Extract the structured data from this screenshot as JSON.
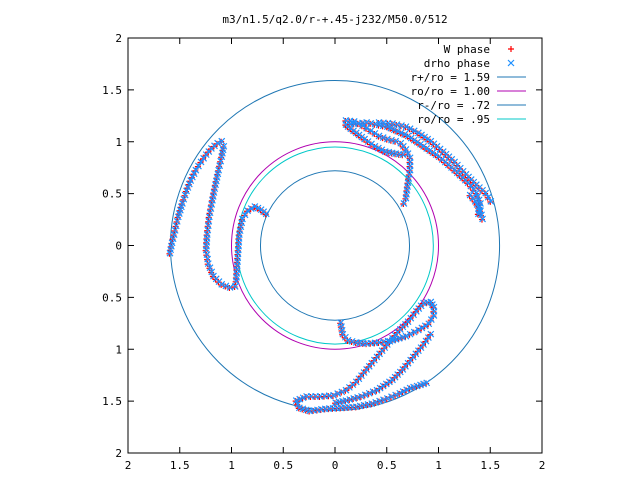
{
  "chart_data": {
    "type": "scatter",
    "title": "m3/n1.5/q2.0/r-+.45-j232/M50.0/512",
    "xlabel": "",
    "ylabel": "",
    "xlim": [
      -2,
      2
    ],
    "ylim": [
      -2,
      2
    ],
    "grid": false,
    "legend_position": "top-right",
    "x_ticks": [
      -2,
      -1.5,
      -1,
      -0.5,
      0,
      0.5,
      1,
      1.5,
      2
    ],
    "y_ticks": [
      -2,
      -1.5,
      -1,
      -0.5,
      0,
      0.5,
      1,
      1.5,
      2
    ],
    "x_tick_labels": [
      "2",
      "1.5",
      "1",
      "0.5",
      "0",
      "0.5",
      "1",
      "1.5",
      "2"
    ],
    "y_tick_labels": [
      "2",
      "1.5",
      "1",
      "0.5",
      "0",
      "0.5",
      "1",
      "1.5",
      "2"
    ],
    "series": [
      {
        "name": "W phase",
        "kind": "points",
        "marker": "plus",
        "color": "#ff0000"
      },
      {
        "name": "drho phase",
        "kind": "points",
        "marker": "cross",
        "color": "#1e90ff"
      },
      {
        "name": "r+/ro = 1.59",
        "kind": "circle",
        "radius": 1.59,
        "color": "#1f77b4"
      },
      {
        "name": "ro/ro = 1.00",
        "kind": "circle",
        "radius": 1.0,
        "color": "#b000b0"
      },
      {
        "name": "r-/ro = .72",
        "kind": "circle",
        "radius": 0.72,
        "color": "#1f77b4"
      },
      {
        "name": "ro/ro = .95",
        "kind": "circle",
        "radius": 0.95,
        "color": "#00c8c8"
      }
    ],
    "spiral_arms": [
      {
        "points": [
          [
            -1.6,
            -0.08
          ],
          [
            -1.58,
            0.02
          ],
          [
            -1.55,
            0.14
          ],
          [
            -1.52,
            0.27
          ],
          [
            -1.48,
            0.4
          ],
          [
            -1.44,
            0.52
          ],
          [
            -1.4,
            0.62
          ],
          [
            -1.35,
            0.72
          ],
          [
            -1.3,
            0.8
          ],
          [
            -1.25,
            0.87
          ],
          [
            -1.2,
            0.93
          ],
          [
            -1.14,
            0.98
          ],
          [
            -1.1,
            1.0
          ],
          [
            -1.08,
            0.95
          ],
          [
            -1.1,
            0.85
          ],
          [
            -1.13,
            0.72
          ],
          [
            -1.16,
            0.58
          ],
          [
            -1.19,
            0.43
          ],
          [
            -1.22,
            0.27
          ],
          [
            -1.24,
            0.1
          ],
          [
            -1.25,
            -0.05
          ],
          [
            -1.23,
            -0.18
          ],
          [
            -1.18,
            -0.3
          ],
          [
            -1.1,
            -0.38
          ],
          [
            -1.02,
            -0.41
          ],
          [
            -0.97,
            -0.4
          ]
        ]
      },
      {
        "points": [
          [
            -0.96,
            -0.35
          ],
          [
            -0.95,
            -0.2
          ],
          [
            -0.94,
            -0.05
          ],
          [
            -0.93,
            0.1
          ],
          [
            -0.9,
            0.25
          ],
          [
            -0.85,
            0.33
          ],
          [
            -0.78,
            0.37
          ],
          [
            -0.72,
            0.34
          ],
          [
            -0.67,
            0.3
          ]
        ]
      },
      {
        "points": [
          [
            0.1,
            1.2
          ],
          [
            0.18,
            1.19
          ],
          [
            0.26,
            1.15
          ],
          [
            0.34,
            1.1
          ],
          [
            0.42,
            1.05
          ],
          [
            0.5,
            1.02
          ],
          [
            0.58,
            1.0
          ],
          [
            0.63,
            0.98
          ],
          [
            0.68,
            0.92
          ],
          [
            0.72,
            0.84
          ],
          [
            0.72,
            0.72
          ],
          [
            0.7,
            0.6
          ],
          [
            0.68,
            0.45
          ],
          [
            0.66,
            0.4
          ]
        ]
      },
      {
        "points": [
          [
            0.12,
            1.14
          ],
          [
            0.2,
            1.08
          ],
          [
            0.28,
            1.02
          ],
          [
            0.38,
            0.95
          ],
          [
            0.48,
            0.9
          ],
          [
            0.58,
            0.88
          ],
          [
            0.65,
            0.87
          ]
        ]
      },
      {
        "points": [
          [
            0.1,
            1.16
          ],
          [
            0.3,
            1.18
          ],
          [
            0.5,
            1.14
          ],
          [
            0.7,
            1.05
          ],
          [
            0.85,
            0.95
          ],
          [
            1.0,
            0.85
          ],
          [
            1.15,
            0.72
          ],
          [
            1.28,
            0.6
          ],
          [
            1.36,
            0.5
          ],
          [
            1.4,
            0.4
          ],
          [
            1.38,
            0.3
          ]
        ]
      },
      {
        "points": [
          [
            0.42,
            1.18
          ],
          [
            0.55,
            1.17
          ],
          [
            0.68,
            1.14
          ],
          [
            0.8,
            1.08
          ],
          [
            0.92,
            1.0
          ],
          [
            1.04,
            0.9
          ],
          [
            1.15,
            0.8
          ],
          [
            1.26,
            0.68
          ],
          [
            1.36,
            0.58
          ],
          [
            1.45,
            0.5
          ],
          [
            1.5,
            0.42
          ]
        ]
      },
      {
        "points": [
          [
            1.3,
            0.48
          ],
          [
            1.35,
            0.42
          ],
          [
            1.4,
            0.33
          ],
          [
            1.42,
            0.25
          ]
        ]
      },
      {
        "points": [
          [
            0.05,
            -0.75
          ],
          [
            0.07,
            -0.86
          ],
          [
            0.12,
            -0.92
          ],
          [
            0.2,
            -0.94
          ],
          [
            0.3,
            -0.95
          ],
          [
            0.42,
            -0.94
          ],
          [
            0.55,
            -0.92
          ],
          [
            0.68,
            -0.88
          ],
          [
            0.8,
            -0.82
          ],
          [
            0.9,
            -0.76
          ],
          [
            0.95,
            -0.68
          ],
          [
            0.95,
            -0.6
          ],
          [
            0.92,
            -0.55
          ],
          [
            0.85,
            -0.56
          ],
          [
            0.78,
            -0.64
          ],
          [
            0.7,
            -0.74
          ],
          [
            0.6,
            -0.84
          ],
          [
            0.5,
            -0.96
          ],
          [
            0.4,
            -1.08
          ],
          [
            0.3,
            -1.2
          ],
          [
            0.2,
            -1.32
          ],
          [
            0.1,
            -1.4
          ],
          [
            -0.02,
            -1.45
          ],
          [
            -0.15,
            -1.46
          ],
          [
            -0.28,
            -1.46
          ],
          [
            -0.38,
            -1.5
          ],
          [
            -0.35,
            -1.57
          ],
          [
            -0.25,
            -1.6
          ],
          [
            -0.1,
            -1.58
          ],
          [
            0.05,
            -1.57
          ],
          [
            0.2,
            -1.56
          ],
          [
            0.35,
            -1.53
          ],
          [
            0.5,
            -1.48
          ],
          [
            0.62,
            -1.43
          ],
          [
            0.72,
            -1.38
          ],
          [
            0.82,
            -1.35
          ],
          [
            0.88,
            -1.33
          ]
        ]
      },
      {
        "points": [
          [
            0.0,
            -1.52
          ],
          [
            0.1,
            -1.5
          ],
          [
            0.25,
            -1.46
          ],
          [
            0.4,
            -1.4
          ],
          [
            0.55,
            -1.3
          ],
          [
            0.65,
            -1.2
          ],
          [
            0.75,
            -1.08
          ],
          [
            0.85,
            -0.96
          ],
          [
            0.92,
            -0.86
          ]
        ]
      }
    ]
  }
}
